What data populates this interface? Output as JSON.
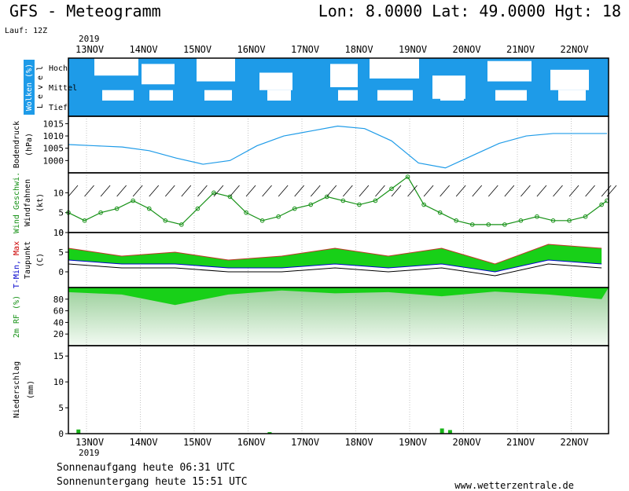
{
  "header": {
    "title": "GFS - Meteogramm",
    "location": "Lon: 8.0000  Lat: 49.0000  Hgt: 18",
    "run": "Lauf: 12Z"
  },
  "x_axis": {
    "year": "2019",
    "dates": [
      "13NOV",
      "14NOV",
      "15NOV",
      "16NOV",
      "17NOV",
      "18NOV",
      "19NOV",
      "20NOV",
      "21NOV",
      "22NOV"
    ]
  },
  "footer": {
    "sunrise": "Sonnenaufgang heute 06:31 UTC",
    "sunset": "Sonnenuntergang heute 15:51 UTC",
    "source": "www.wetterzentrale.de"
  },
  "colors": {
    "cloud": "#1e9be8",
    "pressure": "#1e9be8",
    "wind": "#169116",
    "temp_fill": "#18d018",
    "temp_max": "#c0392b",
    "humidity": "#18d018",
    "precip": "#18b418"
  },
  "chart_data": [
    {
      "type": "heatmap",
      "ylabel": "Wolken (%)",
      "ylabel2": "L e v e l",
      "levels": [
        "Hoch",
        "Mittel",
        "Tief"
      ]
    },
    {
      "type": "line",
      "ylabel": "Bodendruck",
      "ylabel2": "(hPa)",
      "ylim": [
        995,
        1018
      ],
      "ticks": [
        1000,
        1005,
        1010,
        1015
      ],
      "x": [
        0,
        0.5,
        1,
        1.5,
        2,
        2.5,
        3,
        3.5,
        4,
        4.5,
        5,
        5.5,
        6,
        6.5,
        7,
        7.5,
        8,
        8.5,
        9,
        9.5,
        10
      ],
      "values": [
        1006.5,
        1006,
        1005.5,
        1004,
        1001,
        998.5,
        1000,
        1006,
        1010,
        1012,
        1014,
        1013,
        1008,
        999,
        997,
        1002,
        1007,
        1010,
        1011,
        1011,
        1011
      ]
    },
    {
      "type": "line",
      "ylabel": "Wind Geschwi.",
      "ylabel2": "Windfahnen",
      "ylabel3": "(kt)",
      "ylim": [
        0,
        15
      ],
      "ticks": [
        0,
        5,
        10
      ],
      "x": [
        0,
        0.3,
        0.6,
        0.9,
        1.2,
        1.5,
        1.8,
        2.1,
        2.4,
        2.7,
        3,
        3.3,
        3.6,
        3.9,
        4.2,
        4.5,
        4.8,
        5.1,
        5.4,
        5.7,
        6,
        6.3,
        6.6,
        6.9,
        7.2,
        7.5,
        7.8,
        8.1,
        8.4,
        8.7,
        9,
        9.3,
        9.6,
        9.9,
        10
      ],
      "values": [
        5,
        3,
        5,
        6,
        8,
        6,
        3,
        2,
        6,
        10,
        9,
        5,
        3,
        4,
        6,
        7,
        9,
        8,
        7,
        8,
        11,
        14,
        7,
        5,
        3,
        2,
        2,
        2,
        3,
        4,
        3,
        3,
        4,
        7,
        8
      ]
    },
    {
      "type": "area",
      "ylabel": "T-Min, Max",
      "ylabel2": "Taupunkt",
      "ylabel3": "(C)",
      "ylim": [
        -4,
        10
      ],
      "ticks": [
        0,
        5,
        10
      ],
      "x": [
        0,
        1,
        2,
        3,
        4,
        5,
        6,
        7,
        8,
        9,
        10
      ],
      "series": [
        {
          "name": "T-Max",
          "values": [
            6,
            4,
            5,
            3,
            4,
            6,
            4,
            6,
            2,
            7,
            6
          ]
        },
        {
          "name": "T-Min",
          "values": [
            3,
            2,
            2,
            1,
            1,
            2,
            1,
            2,
            0,
            3,
            2
          ]
        },
        {
          "name": "Taupunkt",
          "values": [
            2,
            1,
            1,
            0,
            0,
            1,
            0,
            1,
            -1,
            2,
            1
          ]
        }
      ]
    },
    {
      "type": "area",
      "ylabel": "2m RF (%)",
      "ylim": [
        0,
        100
      ],
      "ticks": [
        20,
        40,
        60,
        80
      ],
      "x": [
        0,
        1,
        2,
        3,
        4,
        5,
        6,
        7,
        8,
        9,
        10
      ],
      "values": [
        92,
        88,
        70,
        88,
        95,
        90,
        92,
        85,
        93,
        88,
        80
      ]
    },
    {
      "type": "bar",
      "ylabel": "Niederschlag",
      "ylabel2": "(mm)",
      "ylim": [
        0,
        17
      ],
      "ticks": [
        0,
        5,
        10,
        15
      ],
      "x": [
        0.15,
        3.7,
        6.9,
        7.05
      ],
      "values": [
        0.8,
        0.3,
        1.0,
        0.7
      ]
    }
  ]
}
